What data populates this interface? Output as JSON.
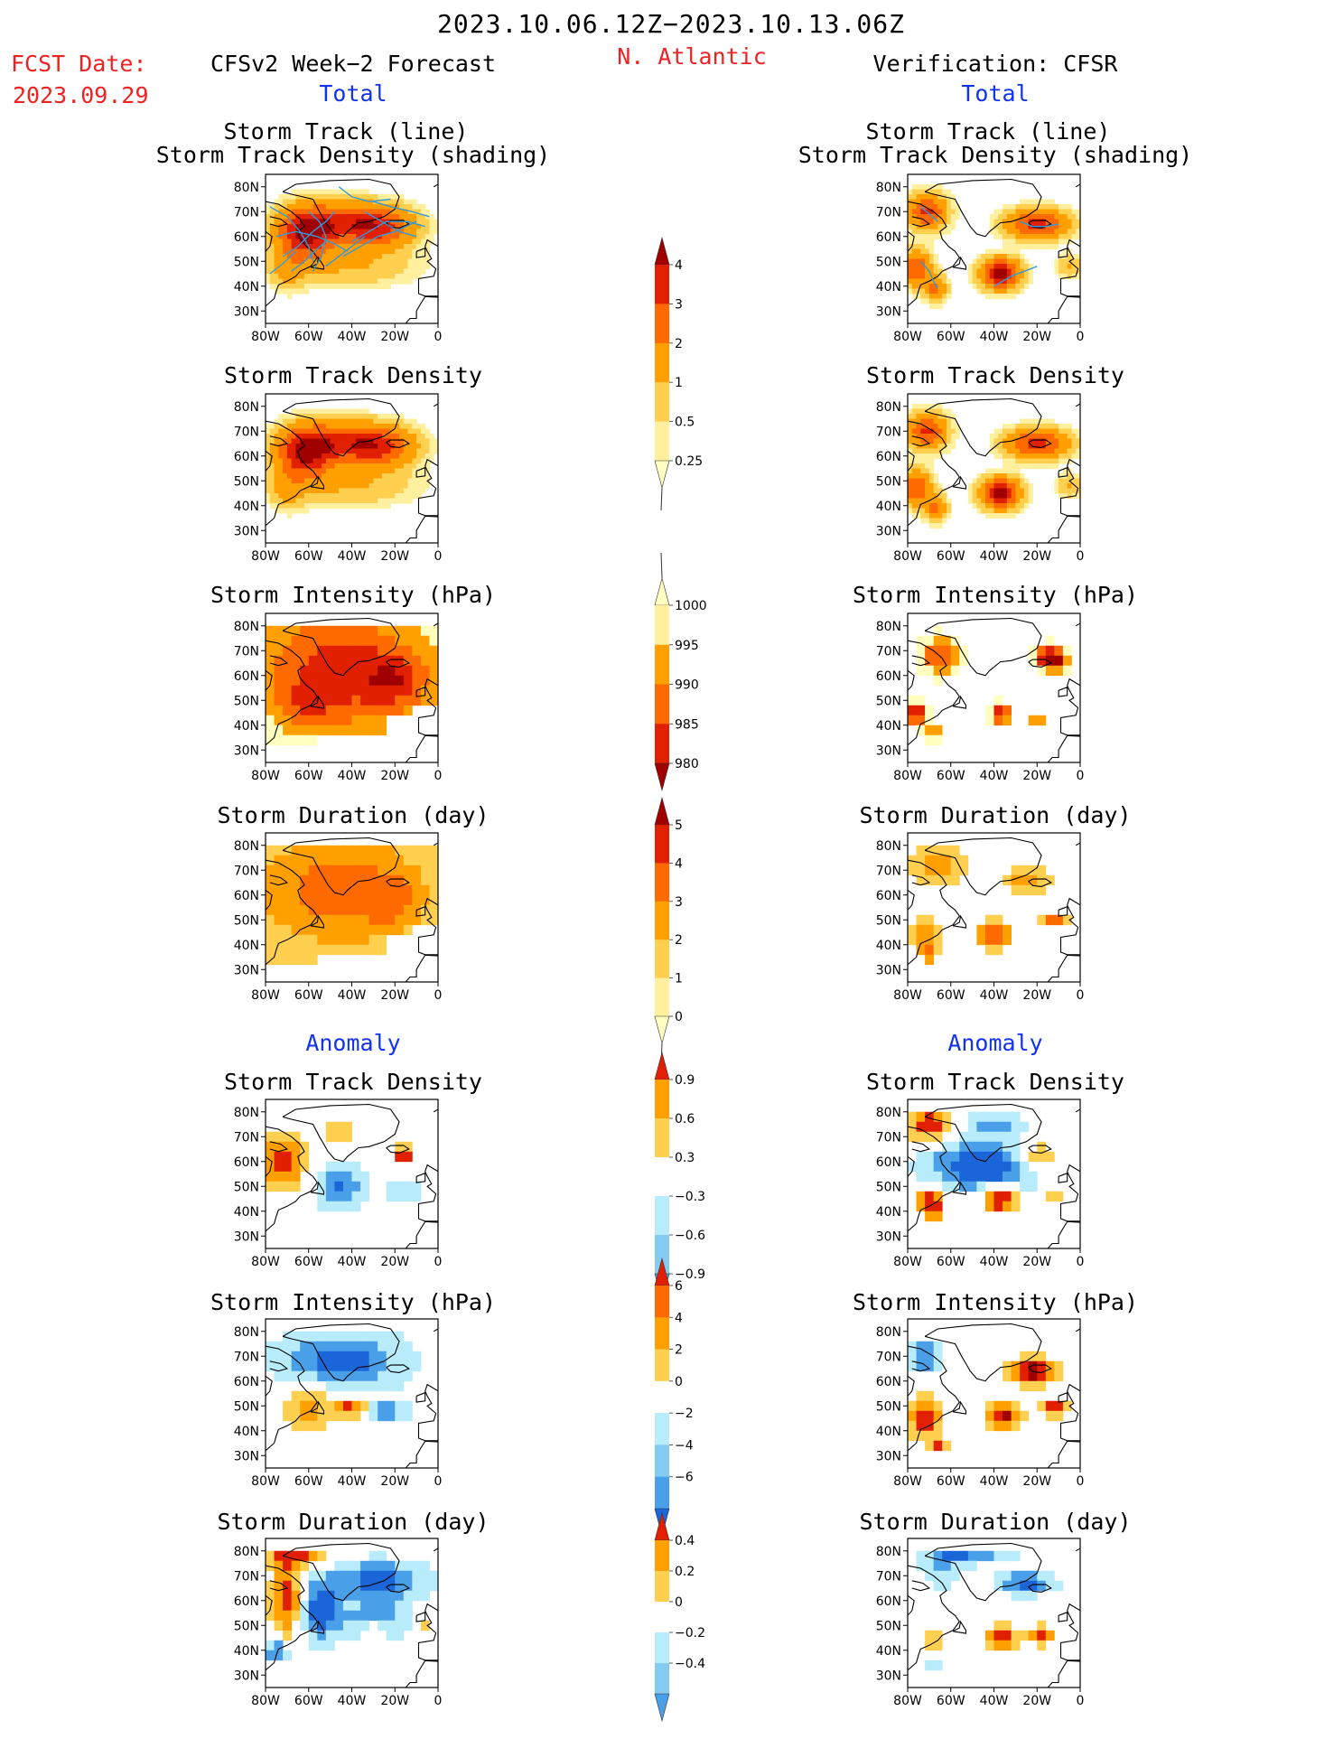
{
  "header": {
    "period": "2023.10.06.12Z−2023.10.13.06Z",
    "fcst_label": "FCST Date:",
    "fcst_date": "2023.09.29",
    "left_title": "CFSv2 Week−2 Forecast",
    "region": "N. Atlantic",
    "right_title": "Verification: CFSR",
    "total_left": "Total",
    "total_right": "Total",
    "anomaly_left": "Anomaly",
    "anomaly_right": "Anomaly"
  },
  "panel_titles": {
    "track_line": "Storm Track (line)",
    "track_shading": "Storm Track Density (shading)",
    "density": "Storm Track Density",
    "intensity": "Storm Intensity (hPa)",
    "duration": "Storm Duration (day)"
  },
  "axes": {
    "lat_labels": [
      "80N",
      "70N",
      "60N",
      "50N",
      "40N",
      "30N"
    ],
    "lon_labels": [
      "80W",
      "60W",
      "40W",
      "20W",
      "0"
    ]
  },
  "colorbars": {
    "density_total": [
      "4",
      "3",
      "2",
      "1",
      "0.5",
      "0.25"
    ],
    "intensity_total": [
      "1000",
      "995",
      "990",
      "985",
      "980"
    ],
    "duration_total": [
      "5",
      "4",
      "3",
      "2",
      "1",
      "0"
    ],
    "density_anom": [
      "0.9",
      "0.6",
      "0.3",
      "−0.3",
      "−0.6",
      "−0.9"
    ],
    "intensity_anom": [
      "6",
      "4",
      "2",
      "0",
      "−2",
      "−4",
      "−6"
    ],
    "duration_anom": [
      "0.4",
      "0.2",
      "0",
      "−0.2",
      "−0.4"
    ]
  },
  "colors": {
    "title_red": "#ee2222",
    "subtitle_blue": "#1133ee",
    "track_line": "#3399dd",
    "warm": [
      "#ffffc0",
      "#fff0a0",
      "#ffd050",
      "#ffa000",
      "#ff6a00",
      "#e02000",
      "#a00000"
    ],
    "cool": [
      "#ffffff",
      "#b8ecfa",
      "#86caf0",
      "#4aa0e8",
      "#1a66d8"
    ]
  }
}
